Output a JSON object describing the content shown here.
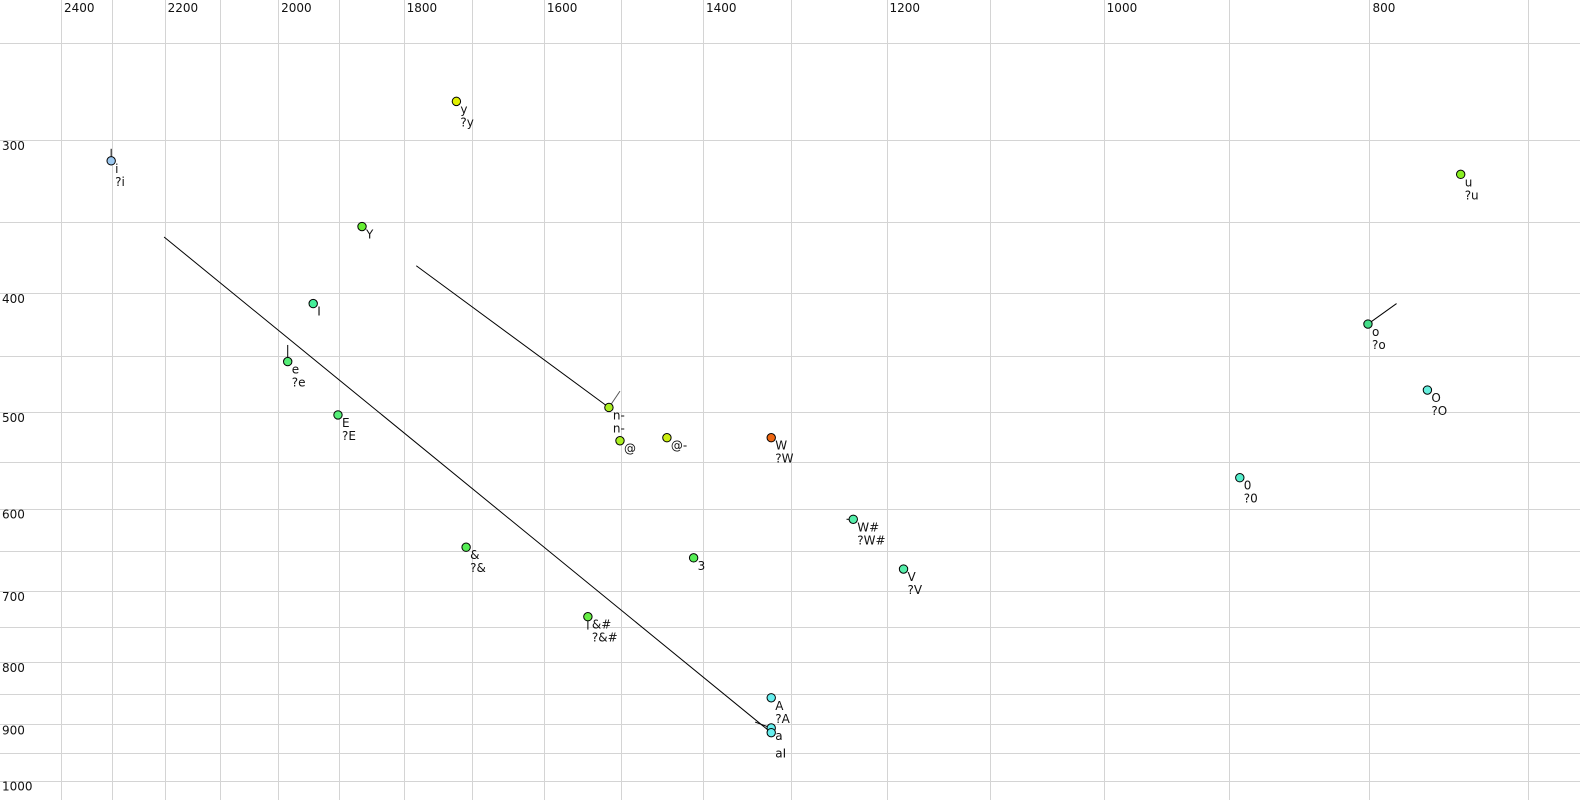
{
  "chart_data": {
    "type": "scatter",
    "title": "",
    "xlabel": "",
    "ylabel": "",
    "x_axis": {
      "quantity": "F2",
      "scale": "log",
      "reversed": true,
      "xlim": [
        2400,
        700
      ],
      "ticks": [
        2400,
        2200,
        2000,
        1800,
        1600,
        1400,
        1200,
        1000,
        800
      ],
      "grid_step": 100,
      "position": "top"
    },
    "y_axis": {
      "quantity": "F1",
      "scale": "log",
      "reversed": false,
      "ylim": [
        250,
        1000
      ],
      "ticks": [
        300,
        400,
        500,
        600,
        700,
        800,
        900,
        1000
      ],
      "grid_step": 50,
      "position": "left"
    },
    "grid": true,
    "points": [
      {
        "f2": 2301,
        "f1": 312,
        "color": "#9cc8f0",
        "labels": [
          "i",
          "?i"
        ],
        "tail": [
          2301,
          305
        ]
      },
      {
        "f2": 1722,
        "f1": 279,
        "color": "#e0f000",
        "labels": [
          "y",
          "?y"
        ]
      },
      {
        "f2": 1864,
        "f1": 353,
        "color": "#66ee33",
        "labels": [
          "Y"
        ]
      },
      {
        "f2": 1942,
        "f1": 408,
        "color": "#44ee99",
        "labels": [
          "I"
        ]
      },
      {
        "f2": 1984,
        "f1": 455,
        "color": "#55ee77",
        "labels": [
          "e",
          "?e"
        ],
        "tail": [
          1984,
          441
        ]
      },
      {
        "f2": 1902,
        "f1": 503,
        "color": "#55ee77",
        "labels": [
          "E",
          "?E"
        ]
      },
      {
        "f2": 1515,
        "f1": 496,
        "color": "#aaee22",
        "labels": [
          "n-",
          "n-"
        ],
        "first_label_color": "#666677",
        "tail": [
          1501,
          481
        ]
      },
      {
        "f2": 1501,
        "f1": 528,
        "color": "#aaee22",
        "labels": [
          "@"
        ]
      },
      {
        "f2": 1443,
        "f1": 525,
        "color": "#ccee11",
        "labels": [
          "@-"
        ]
      },
      {
        "f2": 1322,
        "f1": 525,
        "color": "#ee6611",
        "labels": [
          "W",
          "?W"
        ]
      },
      {
        "f2": 1708,
        "f1": 645,
        "color": "#55ee55",
        "labels": [
          "&",
          "?&"
        ]
      },
      {
        "f2": 1411,
        "f1": 658,
        "color": "#55ee55",
        "labels": [
          "3"
        ]
      },
      {
        "f2": 1542,
        "f1": 735,
        "color": "#66ee44",
        "labels": [
          "&#",
          "?&#"
        ],
        "tail": [
          1542,
          753
        ]
      },
      {
        "f2": 1234,
        "f1": 612,
        "color": "#55eeaa",
        "labels": [
          "W#",
          "?W#"
        ],
        "tail": [
          1241,
          612
        ]
      },
      {
        "f2": 1183,
        "f1": 672,
        "color": "#55eeaa",
        "labels": [
          "V",
          "?V"
        ]
      },
      {
        "f2": 1322,
        "f1": 856,
        "color": "#66eeee",
        "labels": [
          "A",
          "?A"
        ]
      },
      {
        "f2": 1322,
        "f1": 906,
        "color": "#66eeee",
        "labels": [
          "a"
        ],
        "tail": [
          1340,
          896
        ]
      },
      {
        "f2": 1322,
        "f1": 914,
        "color": "#66eeee",
        "labels": [
          "aI"
        ]
      },
      {
        "f2": 741,
        "f1": 320,
        "color": "#88ee22",
        "labels": [
          "u",
          "?u"
        ]
      },
      {
        "f2": 801,
        "f1": 424,
        "color": "#44dd88",
        "labels": [
          "o",
          "?o"
        ],
        "tail": [
          782,
          408
        ]
      },
      {
        "f2": 762,
        "f1": 480,
        "color": "#66eedd",
        "labels": [
          "O",
          "?O"
        ]
      },
      {
        "f2": 892,
        "f1": 566,
        "color": "#55eecc",
        "labels": [
          "0",
          "?0"
        ]
      }
    ],
    "lines": [
      {
        "from": [
          2201,
          360
        ],
        "to": [
          1322,
          914
        ]
      },
      {
        "from": [
          1781,
          380
        ],
        "to": [
          1515,
          496
        ]
      }
    ]
  }
}
